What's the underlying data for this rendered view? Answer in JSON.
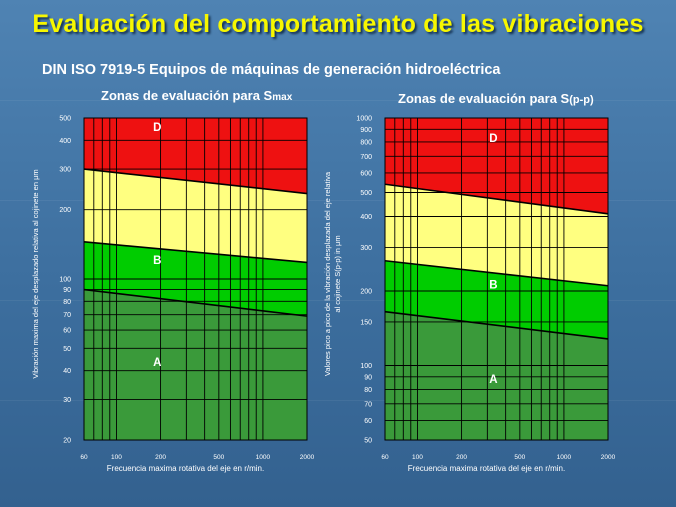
{
  "slide": {
    "title": "Evaluación del comportamiento de las vibraciones",
    "subtitle": "DIN ISO 7919-5  Equipos de máquinas de generación hidroeléctrica"
  },
  "colors": {
    "zone_D": "#ee1111",
    "zone_C": "#ffff80",
    "zone_B": "#00cc00",
    "zone_A": "#3a9a3a",
    "background": "#3f73a3",
    "title": "#f7f700"
  },
  "chart_data": [
    {
      "type": "area",
      "title_main": "Zonas de evaluación  para S",
      "title_sub": "max",
      "ylabel": "Vibración maxima del eje desplazado  relativa al cojinete en μm",
      "xlabel": "Frecuencia maxima rotativa del eje en r/min.",
      "x_scale": "log",
      "y_scale": "log",
      "xlim": [
        60,
        2000
      ],
      "ylim": [
        20,
        500
      ],
      "x_ticks": [
        60,
        100,
        200,
        500,
        1000,
        2000
      ],
      "y_ticks": [
        20,
        30,
        40,
        50,
        60,
        70,
        80,
        90,
        100,
        200,
        300,
        400,
        500
      ],
      "zones": [
        "A",
        "B",
        "",
        "D"
      ],
      "boundaries": [
        {
          "name": "A/B",
          "x": [
            60,
            2000
          ],
          "y": [
            90,
            69
          ]
        },
        {
          "name": "B/C",
          "x": [
            60,
            2000
          ],
          "y": [
            145,
            118
          ]
        },
        {
          "name": "C/D",
          "x": [
            60,
            2000
          ],
          "y": [
            300,
            235
          ]
        }
      ]
    },
    {
      "type": "area",
      "title_main": "Zonas de evaluación  para S",
      "title_sub": "(p-p)",
      "ylabel": "Valores pico a pico de la vibración desplazada del eje relativa al cojinete S(p-p) in μm",
      "xlabel": "Frecuencia maxima rotativa del eje en r/min.",
      "x_scale": "log",
      "y_scale": "log",
      "xlim": [
        60,
        2000
      ],
      "ylim": [
        50,
        1000
      ],
      "x_ticks": [
        60,
        100,
        200,
        500,
        1000,
        2000
      ],
      "y_ticks": [
        50,
        60,
        70,
        80,
        90,
        100,
        150,
        200,
        300,
        400,
        500,
        600,
        700,
        800,
        900,
        1000
      ],
      "zones": [
        "A",
        "B",
        "",
        "D"
      ],
      "boundaries": [
        {
          "name": "A/B",
          "x": [
            60,
            2000
          ],
          "y": [
            165,
            128
          ]
        },
        {
          "name": "B/C",
          "x": [
            60,
            2000
          ],
          "y": [
            265,
            210
          ]
        },
        {
          "name": "C/D",
          "x": [
            60,
            2000
          ],
          "y": [
            540,
            410
          ]
        }
      ]
    }
  ]
}
